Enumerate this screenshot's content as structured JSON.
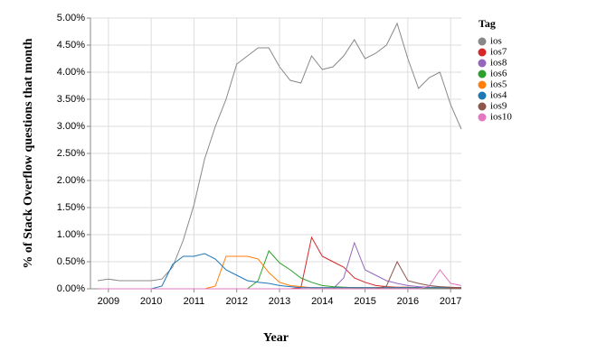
{
  "chart_data": {
    "type": "line",
    "y_label": "% of Stack Overflow questions that month",
    "x_label": "Year",
    "legend_title": "Tag",
    "legend_position": "right",
    "grid": true,
    "xlim": [
      2008.58,
      2017.25
    ],
    "xticks": [
      2009,
      2010,
      2011,
      2012,
      2013,
      2014,
      2015,
      2016,
      2017
    ],
    "ylim": [
      0,
      5
    ],
    "yticks": [
      {
        "value": 0,
        "label": "0.00%"
      },
      {
        "value": 0.5,
        "label": "0.50%"
      },
      {
        "value": 1,
        "label": "1.00%"
      },
      {
        "value": 1.5,
        "label": "1.50%"
      },
      {
        "value": 2,
        "label": "2.00%"
      },
      {
        "value": 2.5,
        "label": "2.50%"
      },
      {
        "value": 3,
        "label": "3.00%"
      },
      {
        "value": 3.5,
        "label": "3.50%"
      },
      {
        "value": 4,
        "label": "4.00%"
      },
      {
        "value": 4.5,
        "label": "4.50%"
      },
      {
        "value": 5,
        "label": "5.00%"
      }
    ],
    "x": [
      2008.75,
      2009,
      2009.25,
      2009.5,
      2009.75,
      2010,
      2010.25,
      2010.5,
      2010.75,
      2011,
      2011.25,
      2011.5,
      2011.75,
      2012,
      2012.25,
      2012.5,
      2012.75,
      2013,
      2013.25,
      2013.5,
      2013.75,
      2014,
      2014.25,
      2014.5,
      2014.75,
      2015,
      2015.25,
      2015.5,
      2015.75,
      2016,
      2016.25,
      2016.5,
      2016.75,
      2017,
      2017.25
    ],
    "series": [
      {
        "name": "ios",
        "color": "#888888",
        "values": [
          0.15,
          0.18,
          0.15,
          0.15,
          0.15,
          0.15,
          0.18,
          0.4,
          0.9,
          1.55,
          2.4,
          3.0,
          3.5,
          4.15,
          4.3,
          4.45,
          4.45,
          4.1,
          3.85,
          3.8,
          4.3,
          4.05,
          4.1,
          4.3,
          4.6,
          4.25,
          4.35,
          4.5,
          4.9,
          4.25,
          3.7,
          3.9,
          4.0,
          3.4,
          2.95
        ]
      },
      {
        "name": "ios7",
        "color": "#d62728",
        "values": [
          0,
          0,
          0,
          0,
          0,
          0,
          0,
          0,
          0,
          0,
          0,
          0,
          0,
          0,
          0,
          0,
          0,
          0,
          0,
          0.02,
          0.95,
          0.6,
          0.5,
          0.4,
          0.2,
          0.12,
          0.06,
          0.04,
          0.03,
          0.03,
          0.02,
          0.02,
          0.02,
          0.01,
          0.01
        ]
      },
      {
        "name": "ios8",
        "color": "#9467bd",
        "values": [
          0,
          0,
          0,
          0,
          0,
          0,
          0,
          0,
          0,
          0,
          0,
          0,
          0,
          0,
          0,
          0,
          0,
          0,
          0,
          0,
          0,
          0,
          0,
          0.2,
          0.85,
          0.35,
          0.25,
          0.15,
          0.1,
          0.06,
          0.04,
          0.03,
          0.03,
          0.02,
          0.02
        ]
      },
      {
        "name": "ios6",
        "color": "#2ca02c",
        "values": [
          0,
          0,
          0,
          0,
          0,
          0,
          0,
          0,
          0,
          0,
          0,
          0,
          0,
          0,
          0,
          0.15,
          0.7,
          0.48,
          0.35,
          0.2,
          0.12,
          0.06,
          0.04,
          0.03,
          0.02,
          0.02,
          0.02,
          0.02,
          0.02,
          0.02,
          0.02,
          0.02,
          0.02,
          0.02,
          0.02
        ]
      },
      {
        "name": "ios5",
        "color": "#ff7f0e",
        "values": [
          0,
          0,
          0,
          0,
          0,
          0,
          0,
          0,
          0,
          0,
          0,
          0.05,
          0.6,
          0.6,
          0.6,
          0.55,
          0.3,
          0.12,
          0.06,
          0.04,
          0.02,
          0.02,
          0.02,
          0.02,
          0.02,
          0.02,
          0.02,
          0.02,
          0.02,
          0.02,
          0.02,
          0.02,
          0.02,
          0.02,
          0.02
        ]
      },
      {
        "name": "ios4",
        "color": "#1f77b4",
        "values": [
          0,
          0,
          0,
          0,
          0,
          0,
          0.05,
          0.45,
          0.6,
          0.6,
          0.65,
          0.55,
          0.35,
          0.25,
          0.15,
          0.12,
          0.1,
          0.06,
          0.04,
          0.02,
          0.02,
          0.02,
          0.02,
          0.02,
          0.02,
          0.02,
          0.02,
          0.02,
          0.02,
          0.02,
          0.02,
          0.02,
          0.02,
          0.02,
          0.02
        ]
      },
      {
        "name": "ios9",
        "color": "#8c564b",
        "values": [
          0,
          0,
          0,
          0,
          0,
          0,
          0,
          0,
          0,
          0,
          0,
          0,
          0,
          0,
          0,
          0,
          0,
          0,
          0,
          0,
          0,
          0,
          0,
          0,
          0,
          0,
          0,
          0.05,
          0.5,
          0.15,
          0.1,
          0.06,
          0.04,
          0.03,
          0.02
        ]
      },
      {
        "name": "ios10",
        "color": "#e377c2",
        "values": [
          0,
          0,
          0,
          0,
          0,
          0,
          0,
          0,
          0,
          0,
          0,
          0,
          0,
          0,
          0,
          0,
          0,
          0,
          0,
          0,
          0,
          0,
          0,
          0,
          0,
          0,
          0,
          0,
          0,
          0,
          0,
          0.05,
          0.35,
          0.1,
          0.06
        ]
      }
    ]
  }
}
